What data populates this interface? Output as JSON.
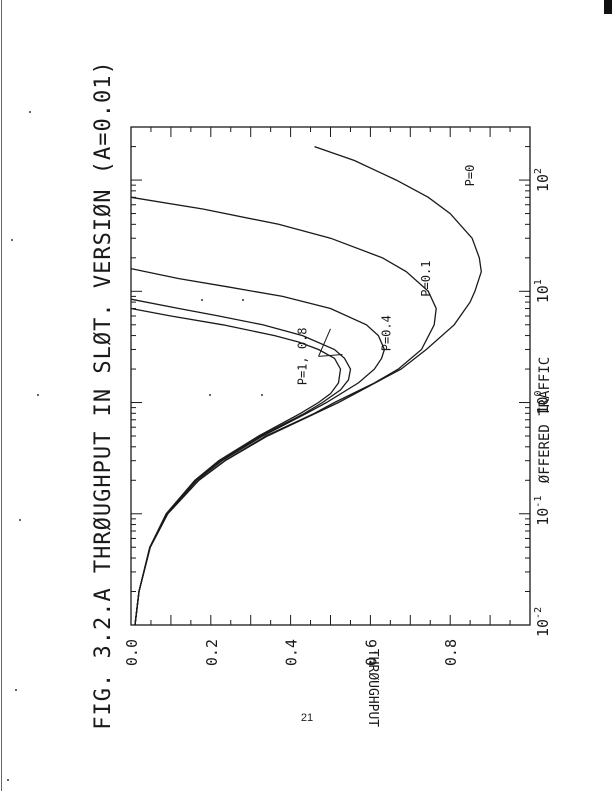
{
  "page_number": "21",
  "chart_data": {
    "type": "line",
    "title": "FIG. 3.2.A THRØUGHPUT IN SLØT. VERSIØN (A=0.01)",
    "xlabel": "ØFFERED TRAFFIC",
    "ylabel": "THRØUGHPUT",
    "x_scale": "log",
    "xlim": [
      0.01,
      300
    ],
    "ylim": [
      0.0,
      1.0
    ],
    "x_ticks": [
      {
        "value": 0.01,
        "base": "10",
        "exp": "-2"
      },
      {
        "value": 0.1,
        "base": "10",
        "exp": "-1"
      },
      {
        "value": 1,
        "base": "10",
        "exp": "0"
      },
      {
        "value": 10,
        "base": "10",
        "exp": "1"
      },
      {
        "value": 100,
        "base": "10",
        "exp": "2"
      }
    ],
    "y_ticks": [
      {
        "value": 0.0,
        "label": "0.0"
      },
      {
        "value": 0.2,
        "label": "0.2"
      },
      {
        "value": 0.4,
        "label": "0.4"
      },
      {
        "value": 0.6,
        "label": "0.6"
      },
      {
        "value": 0.8,
        "label": "0.8"
      }
    ],
    "series": [
      {
        "name": "P=0",
        "x": [
          0.01,
          0.02,
          0.05,
          0.1,
          0.2,
          0.3,
          0.5,
          1,
          2,
          3,
          5,
          8,
          10,
          15,
          20,
          30,
          50,
          70,
          100,
          150,
          200
        ],
        "y": [
          0.01,
          0.02,
          0.048,
          0.092,
          0.17,
          0.236,
          0.342,
          0.52,
          0.677,
          0.74,
          0.81,
          0.85,
          0.862,
          0.878,
          0.873,
          0.855,
          0.8,
          0.745,
          0.665,
          0.56,
          0.46
        ]
      },
      {
        "name": "P=0.1",
        "x": [
          0.01,
          0.02,
          0.05,
          0.1,
          0.2,
          0.3,
          0.5,
          0.8,
          1,
          1.5,
          2,
          3,
          5,
          7,
          10,
          15,
          20,
          30,
          40,
          55,
          70
        ],
        "y": [
          0.01,
          0.02,
          0.048,
          0.092,
          0.17,
          0.235,
          0.338,
          0.46,
          0.51,
          0.61,
          0.67,
          0.728,
          0.76,
          0.765,
          0.745,
          0.69,
          0.63,
          0.5,
          0.37,
          0.18,
          0.0
        ]
      },
      {
        "name": "P=0.4",
        "x": [
          0.01,
          0.02,
          0.05,
          0.1,
          0.2,
          0.3,
          0.5,
          0.8,
          1,
          1.5,
          2,
          2.5,
          3,
          4,
          5,
          7,
          9,
          11,
          13,
          16
        ],
        "y": [
          0.01,
          0.02,
          0.047,
          0.09,
          0.165,
          0.228,
          0.33,
          0.44,
          0.49,
          0.57,
          0.61,
          0.628,
          0.635,
          0.62,
          0.59,
          0.5,
          0.38,
          0.24,
          0.12,
          0.0
        ]
      },
      {
        "name": "P=0.8",
        "x": [
          0.01,
          0.02,
          0.05,
          0.1,
          0.2,
          0.3,
          0.5,
          0.8,
          1,
          1.3,
          1.6,
          2,
          2.5,
          3,
          4,
          5,
          6,
          7,
          8.5
        ],
        "y": [
          0.01,
          0.02,
          0.047,
          0.089,
          0.163,
          0.225,
          0.325,
          0.435,
          0.48,
          0.525,
          0.545,
          0.55,
          0.535,
          0.51,
          0.43,
          0.33,
          0.22,
          0.12,
          0.0
        ]
      },
      {
        "name": "P=1",
        "x": [
          0.01,
          0.02,
          0.05,
          0.1,
          0.2,
          0.3,
          0.5,
          0.8,
          1,
          1.2,
          1.5,
          2,
          2.5,
          3,
          3.5,
          4,
          5,
          6,
          7
        ],
        "y": [
          0.01,
          0.02,
          0.047,
          0.088,
          0.16,
          0.22,
          0.32,
          0.425,
          0.47,
          0.5,
          0.52,
          0.525,
          0.51,
          0.47,
          0.42,
          0.36,
          0.23,
          0.1,
          0.0
        ]
      }
    ],
    "annotations": [
      {
        "text": "P=0",
        "x": 110,
        "y": 0.86
      },
      {
        "text": "P=0.1",
        "x": 13,
        "y": 0.75
      },
      {
        "text": "P=0.4",
        "x": 4.2,
        "y": 0.65
      },
      {
        "text": "P=1, 0.8",
        "x": 2.6,
        "y": 0.44
      }
    ],
    "grid": false,
    "legend": "none"
  }
}
